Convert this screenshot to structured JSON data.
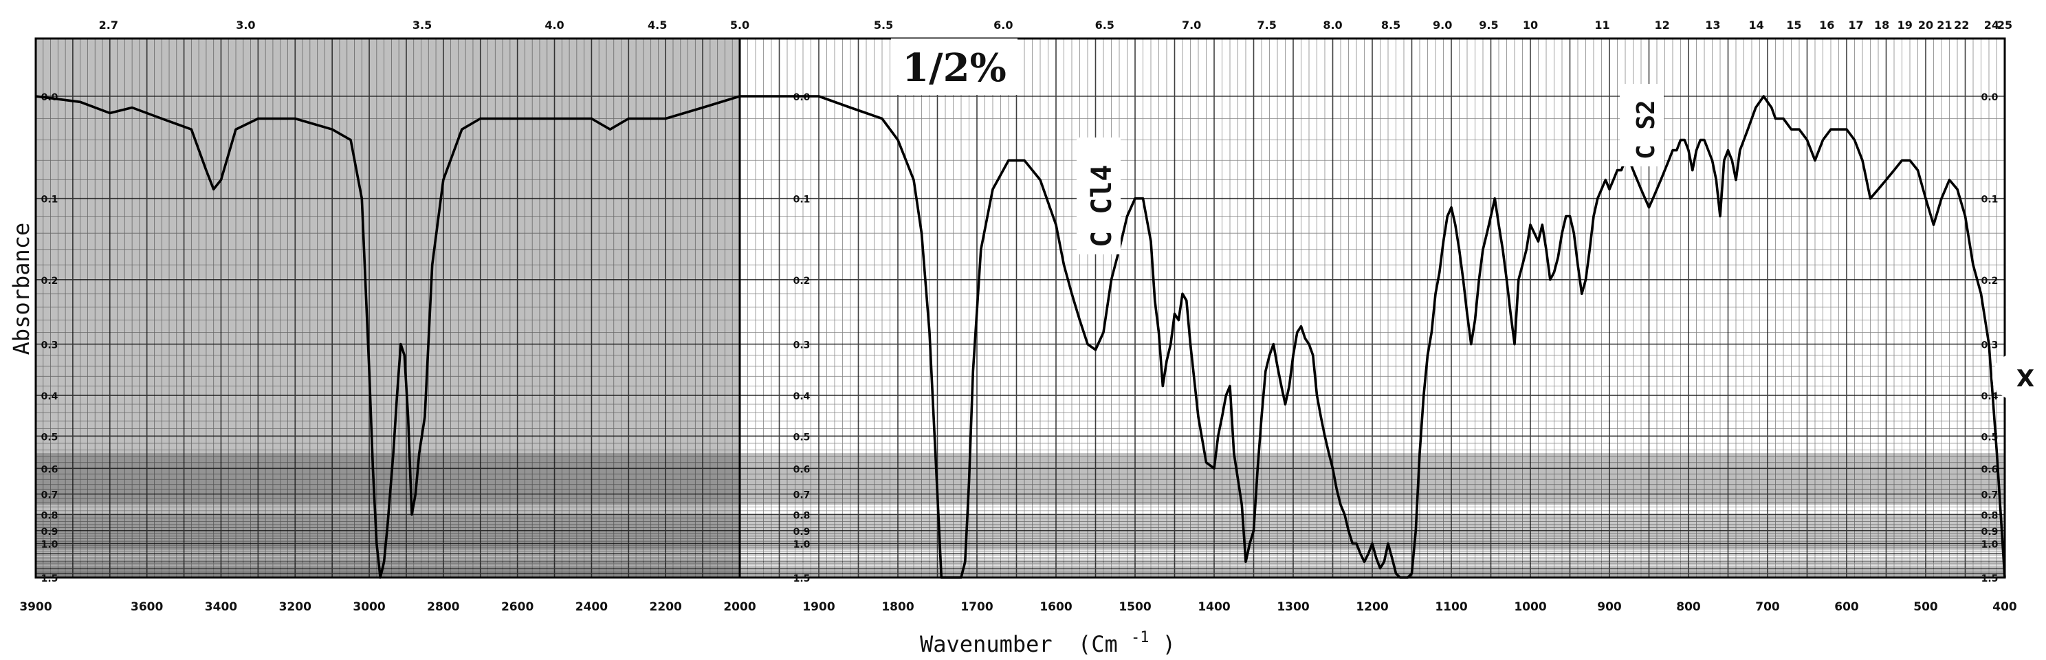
{
  "chart_data": {
    "type": "line",
    "xlabel": "Wavenumber",
    "xlabel_unit": "(Cm",
    "xlabel_unit_exp": "-1",
    "xlabel_unit_close": ")",
    "ylabel": "Absorbance",
    "x_axis": {
      "range": [
        3900,
        400
      ],
      "scale_break": 2000
    },
    "y_axis": {
      "range": [
        0.0,
        1.5
      ],
      "scale": "log"
    },
    "x_ticks": [
      "3900",
      "3600",
      "3400",
      "3200",
      "3000",
      "2800",
      "2600",
      "2400",
      "2200",
      "2000",
      "1900",
      "1800",
      "1700",
      "1600",
      "1500",
      "1400",
      "1300",
      "1200",
      "1100",
      "1000",
      "900",
      "800",
      "700",
      "600",
      "500",
      "400"
    ],
    "top_ticks": [
      {
        "l": "2.7",
        "wl": 2.7
      },
      {
        "l": "3.0",
        "wl": 3.0
      },
      {
        "l": "3.5",
        "wl": 3.5
      },
      {
        "l": "4.0",
        "wl": 4.0
      },
      {
        "l": "4.5",
        "wl": 4.5
      },
      {
        "l": "5.0",
        "wl": 5.0
      },
      {
        "l": "5.5",
        "wl": 5.5
      },
      {
        "l": "6.0",
        "wl": 6.0
      },
      {
        "l": "6.5",
        "wl": 6.5
      },
      {
        "l": "7.0",
        "wl": 7.0
      },
      {
        "l": "7.5",
        "wl": 7.5
      },
      {
        "l": "8.0",
        "wl": 8.0
      },
      {
        "l": "8.5",
        "wl": 8.5
      },
      {
        "l": "9.0",
        "wl": 9.0
      },
      {
        "l": "9.5",
        "wl": 9.5
      },
      {
        "l": "10",
        "wl": 10
      },
      {
        "l": "11",
        "wl": 11
      },
      {
        "l": "12",
        "wl": 12
      },
      {
        "l": "13",
        "wl": 13
      },
      {
        "l": "14",
        "wl": 14
      },
      {
        "l": "15",
        "wl": 15
      },
      {
        "l": "16",
        "wl": 16
      },
      {
        "l": "17",
        "wl": 17
      },
      {
        "l": "18",
        "wl": 18
      },
      {
        "l": "19",
        "wl": 19
      },
      {
        "l": "20",
        "wl": 20
      },
      {
        "l": "21",
        "wl": 21
      },
      {
        "l": "22",
        "wl": 22
      },
      {
        "l": "24",
        "wl": 24
      },
      {
        "l": "25",
        "wl": 25
      }
    ],
    "y_ticks": [
      "0.0",
      "0.1",
      "0.2",
      "0.3",
      "0.4",
      "0.5",
      "0.6",
      "0.7",
      "0.8",
      "0.9",
      "1.0",
      "1.5"
    ],
    "annotations": [
      "1/2%",
      "C Cl4",
      "C S2",
      "X"
    ],
    "series": [
      {
        "x": [
          3900,
          3780,
          3700,
          3640,
          3560,
          3480,
          3440,
          3420,
          3400,
          3360,
          3300,
          3200,
          3100,
          3050,
          3020,
          3000,
          2990,
          2980,
          2970,
          2960,
          2950,
          2935,
          2925,
          2915,
          2905,
          2895,
          2885,
          2875,
          2865,
          2850,
          2830,
          2800,
          2750,
          2700,
          2600,
          2500,
          2400,
          2350,
          2300,
          2200,
          2100,
          2000,
          1950,
          1900,
          1860,
          1820,
          1800,
          1780,
          1770,
          1760,
          1750,
          1745,
          1740,
          1735,
          1730,
          1720,
          1715,
          1710,
          1705,
          1695,
          1680,
          1660,
          1640,
          1620,
          1600,
          1590,
          1580,
          1570,
          1560,
          1550,
          1540,
          1530,
          1520,
          1510,
          1500,
          1490,
          1480,
          1475,
          1470,
          1465,
          1460,
          1455,
          1450,
          1445,
          1440,
          1435,
          1430,
          1420,
          1410,
          1400,
          1395,
          1390,
          1385,
          1380,
          1375,
          1365,
          1360,
          1355,
          1350,
          1345,
          1340,
          1335,
          1330,
          1325,
          1320,
          1315,
          1310,
          1305,
          1300,
          1295,
          1290,
          1285,
          1280,
          1275,
          1270,
          1265,
          1260,
          1255,
          1250,
          1245,
          1240,
          1235,
          1230,
          1225,
          1220,
          1215,
          1210,
          1205,
          1200,
          1195,
          1190,
          1185,
          1180,
          1175,
          1170,
          1165,
          1160,
          1155,
          1150,
          1145,
          1140,
          1135,
          1130,
          1125,
          1120,
          1115,
          1110,
          1105,
          1100,
          1095,
          1090,
          1085,
          1080,
          1075,
          1070,
          1065,
          1060,
          1055,
          1050,
          1045,
          1040,
          1035,
          1030,
          1025,
          1020,
          1015,
          1010,
          1005,
          1000,
          995,
          990,
          985,
          980,
          975,
          970,
          965,
          960,
          955,
          950,
          945,
          940,
          935,
          930,
          925,
          920,
          915,
          910,
          905,
          900,
          895,
          890,
          885,
          880,
          875,
          870,
          865,
          860,
          855,
          850,
          845,
          840,
          835,
          830,
          825,
          820,
          815,
          810,
          805,
          800,
          795,
          790,
          785,
          780,
          775,
          770,
          765,
          760,
          755,
          750,
          745,
          740,
          735,
          730,
          725,
          720,
          715,
          710,
          705,
          700,
          695,
          690,
          680,
          670,
          660,
          650,
          640,
          630,
          620,
          610,
          600,
          590,
          580,
          570,
          560,
          550,
          540,
          530,
          520,
          510,
          500,
          490,
          480,
          470,
          460,
          450,
          440,
          430,
          420,
          410,
          400
        ],
        "y": [
          0.0,
          0.005,
          0.015,
          0.01,
          0.02,
          0.03,
          0.07,
          0.09,
          0.08,
          0.03,
          0.02,
          0.02,
          0.03,
          0.04,
          0.1,
          0.35,
          0.6,
          1.0,
          1.5,
          1.2,
          0.85,
          0.55,
          0.4,
          0.3,
          0.32,
          0.45,
          0.8,
          0.7,
          0.55,
          0.45,
          0.18,
          0.08,
          0.03,
          0.02,
          0.02,
          0.02,
          0.02,
          0.03,
          0.02,
          0.02,
          0.01,
          0.0,
          0.0,
          0.0,
          0.01,
          0.02,
          0.04,
          0.08,
          0.14,
          0.28,
          0.7,
          1.5,
          1.5,
          1.5,
          1.5,
          1.5,
          1.2,
          0.65,
          0.35,
          0.16,
          0.09,
          0.06,
          0.06,
          0.08,
          0.13,
          0.18,
          0.22,
          0.26,
          0.3,
          0.31,
          0.28,
          0.2,
          0.16,
          0.12,
          0.1,
          0.1,
          0.15,
          0.23,
          0.28,
          0.38,
          0.33,
          0.3,
          0.25,
          0.26,
          0.22,
          0.23,
          0.3,
          0.45,
          0.58,
          0.6,
          0.5,
          0.45,
          0.4,
          0.38,
          0.55,
          0.75,
          1.2,
          1.0,
          0.9,
          0.6,
          0.45,
          0.35,
          0.32,
          0.3,
          0.34,
          0.38,
          0.42,
          0.38,
          0.32,
          0.28,
          0.27,
          0.29,
          0.3,
          0.32,
          0.4,
          0.45,
          0.5,
          0.55,
          0.6,
          0.68,
          0.75,
          0.8,
          0.9,
          1.0,
          1.0,
          1.1,
          1.2,
          1.1,
          1.0,
          1.15,
          1.3,
          1.2,
          1.0,
          1.15,
          1.4,
          1.5,
          1.5,
          1.5,
          1.4,
          0.9,
          0.55,
          0.4,
          0.32,
          0.28,
          0.22,
          0.19,
          0.15,
          0.12,
          0.11,
          0.13,
          0.16,
          0.2,
          0.25,
          0.3,
          0.26,
          0.2,
          0.16,
          0.14,
          0.12,
          0.1,
          0.13,
          0.16,
          0.2,
          0.25,
          0.3,
          0.2,
          0.18,
          0.16,
          0.13,
          0.14,
          0.15,
          0.13,
          0.16,
          0.2,
          0.19,
          0.17,
          0.14,
          0.12,
          0.12,
          0.14,
          0.18,
          0.22,
          0.2,
          0.16,
          0.12,
          0.1,
          0.09,
          0.08,
          0.09,
          0.08,
          0.07,
          0.07,
          0.06,
          0.06,
          0.07,
          0.08,
          0.09,
          0.1,
          0.11,
          0.1,
          0.09,
          0.08,
          0.07,
          0.06,
          0.05,
          0.05,
          0.04,
          0.04,
          0.05,
          0.07,
          0.05,
          0.04,
          0.04,
          0.05,
          0.06,
          0.08,
          0.12,
          0.06,
          0.05,
          0.06,
          0.08,
          0.05,
          0.04,
          0.03,
          0.02,
          0.01,
          0.005,
          0.0,
          0.005,
          0.01,
          0.02,
          0.02,
          0.03,
          0.03,
          0.04,
          0.06,
          0.04,
          0.03,
          0.03,
          0.03,
          0.04,
          0.06,
          0.1,
          0.09,
          0.08,
          0.07,
          0.06,
          0.06,
          0.07,
          0.1,
          0.13,
          0.1,
          0.08,
          0.09,
          0.12,
          0.18,
          0.22,
          0.3,
          0.55,
          1.5
        ]
      }
    ]
  }
}
